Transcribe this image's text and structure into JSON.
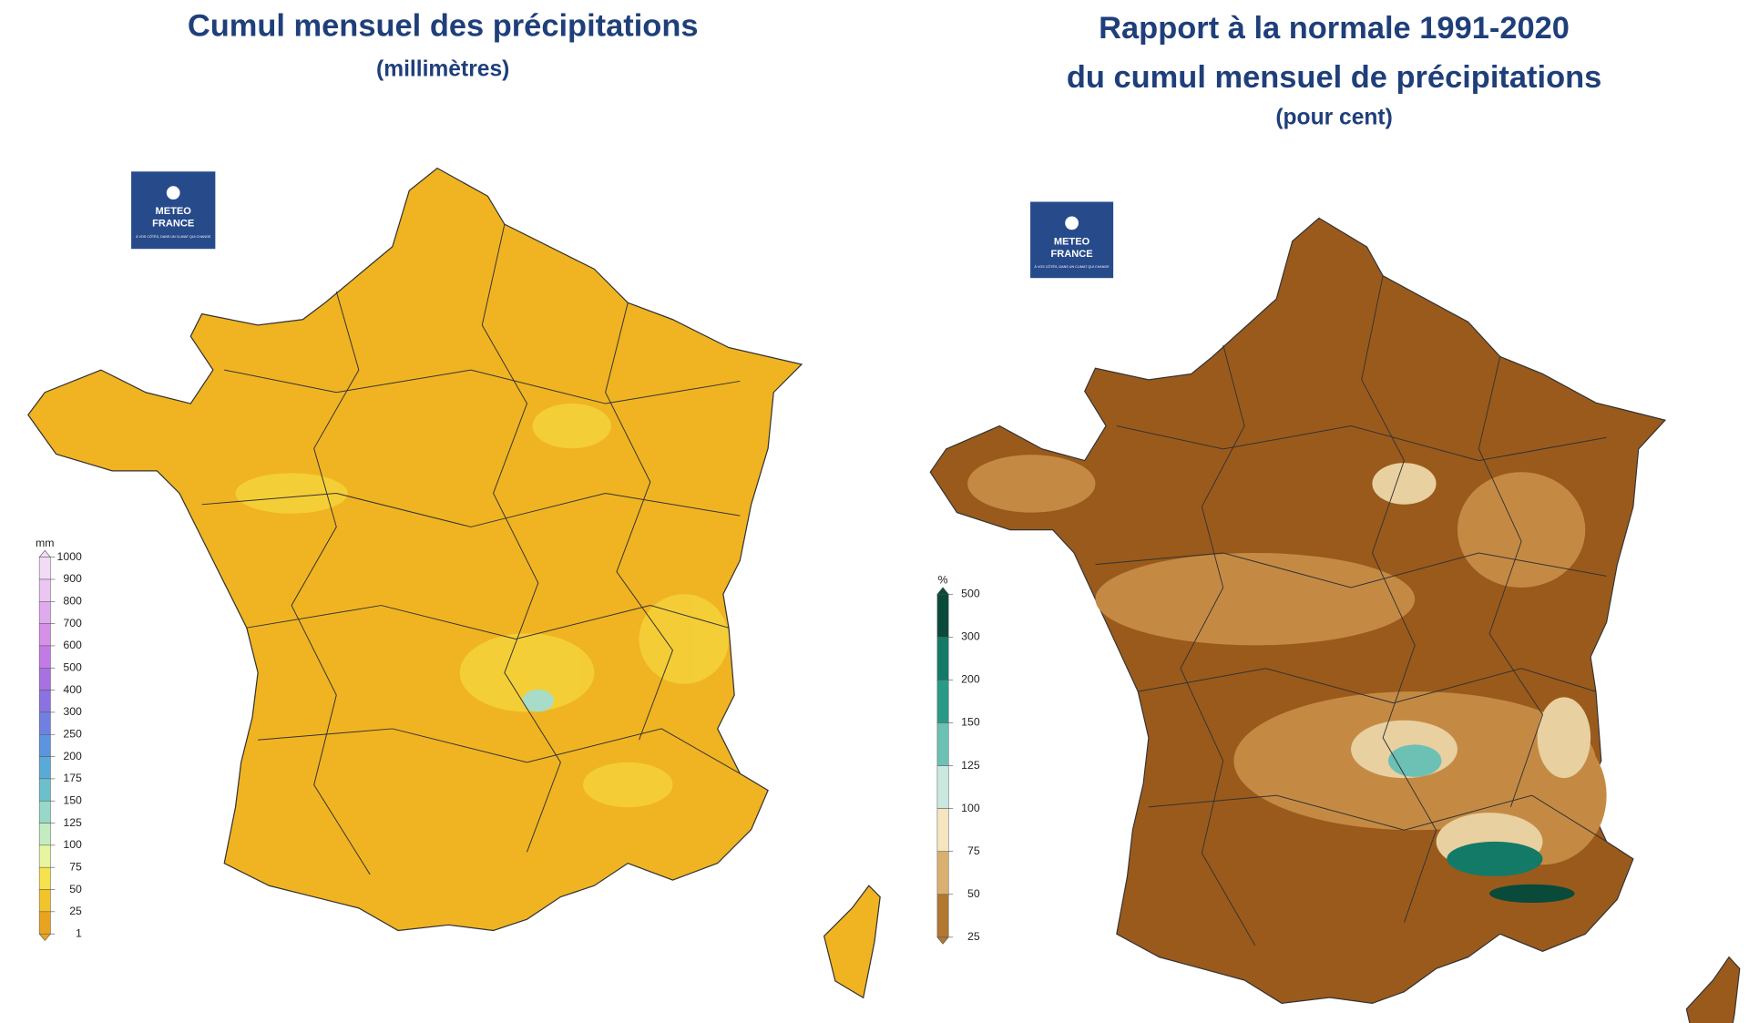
{
  "left_map": {
    "title": "Cumul mensuel des précipitations",
    "subtitle": "(millimètres)",
    "logo": {
      "line1": "METEO",
      "line2": "FRANCE",
      "tagline": "À VOS CÔTÉS, DANS UN CLIMAT QUI CHANGE"
    },
    "legend": {
      "unit": "mm",
      "labels": [
        1000,
        900,
        800,
        700,
        600,
        500,
        400,
        300,
        250,
        200,
        175,
        150,
        125,
        100,
        75,
        50,
        25,
        1
      ],
      "colors": [
        "#f2dcf5",
        "#ecc6f2",
        "#e2aaee",
        "#d690e8",
        "#c47ae4",
        "#a870e0",
        "#8a72e2",
        "#6f80e2",
        "#5c94e0",
        "#5aaad8",
        "#6cc0cc",
        "#98d8c8",
        "#c4ecc0",
        "#e8f5a0",
        "#f5e24c",
        "#f2c42c",
        "#e8a420"
      ]
    }
  },
  "right_map": {
    "title_line1": "Rapport à la normale 1991-2020",
    "title_line2": "du cumul mensuel de précipitations",
    "subtitle": "(pour cent)",
    "logo": {
      "line1": "METEO",
      "line2": "FRANCE",
      "tagline": "À VOS CÔTÉS, DANS UN CLIMAT QUI CHANGE"
    },
    "legend": {
      "unit": "%",
      "labels": [
        500,
        300,
        200,
        150,
        125,
        100,
        75,
        50,
        25
      ],
      "colors": [
        "#0a4a3a",
        "#137a68",
        "#2a9a88",
        "#6cc0b4",
        "#c8e8e0",
        "#f5e6c0",
        "#d9b070",
        "#b07830"
      ]
    }
  }
}
